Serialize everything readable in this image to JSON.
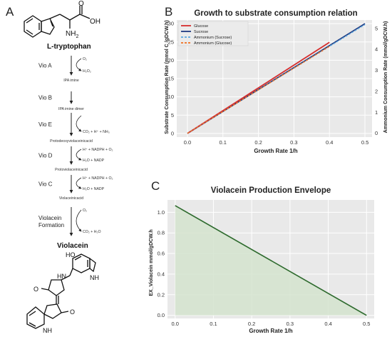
{
  "panels": {
    "a": "A",
    "b": "B",
    "c": "C"
  },
  "pathway": {
    "start": "L-tryptophan",
    "start_groups": {
      "oh": "OH",
      "o": "O",
      "nh2": "NH",
      "nh2_sub": "2"
    },
    "end": "Violacein",
    "end_groups": {
      "ho": "HO",
      "o_left": "O",
      "nh_top": "NH",
      "hn": "HN",
      "nh_bottom": "NH",
      "o_bottom": "O"
    },
    "steps": [
      {
        "enzyme": "Vio A",
        "inputs": "O₂",
        "outputs": "H₂O₂",
        "product": "IPA imine"
      },
      {
        "enzyme": "Vio B",
        "inputs": "",
        "outputs": "",
        "product": "IPA imine dimer"
      },
      {
        "enzyme": "Vio E",
        "inputs": "",
        "outputs": "CO₂ + H⁺ + NH₃",
        "product": "Protodeoxyviolaceinicacid"
      },
      {
        "enzyme": "Vio D",
        "inputs": "H⁺ + NADPH + O₂",
        "outputs": "H₂O + NADP",
        "product": "Protoviolaceinicacid"
      },
      {
        "enzyme": "Vio C",
        "inputs": "H⁺ + NADPH + O₂",
        "outputs": "H₂O + NADP",
        "product": "Violaceinicacid"
      },
      {
        "enzyme": "Violacein\nFormation",
        "inputs": "O₂",
        "outputs": "CO₂ + H₂O",
        "product": ""
      }
    ]
  },
  "chart_data": [
    {
      "type": "line",
      "title": "Growth to substrate consumption relation",
      "xlabel": "Growth Rate 1/h",
      "ylabel": "Substrate Consumption Rate (mmol C /gDCW.h)",
      "y2label": "Ammonium Consumption Rate (mmol/gDCW.h)",
      "xlim": [
        -0.03,
        0.52
      ],
      "ylim": [
        -1,
        31
      ],
      "y2lim": [
        -0.18,
        5.4
      ],
      "xticks": [
        "0.0",
        "0.1",
        "0.2",
        "0.3",
        "0.4",
        "0.5"
      ],
      "yticks": [
        "0",
        "5",
        "10",
        "15",
        "20",
        "25",
        "30"
      ],
      "y2ticks": [
        "0",
        "1",
        "2",
        "3",
        "4",
        "5"
      ],
      "grid": true,
      "legend_position": "top-left",
      "series": [
        {
          "name": "Glucose",
          "axis": "left",
          "color": "#d62d2d",
          "style": "solid",
          "x": [
            0.0,
            0.4
          ],
          "y": [
            0.0,
            24.9
          ]
        },
        {
          "name": "Sucrose",
          "axis": "left",
          "color": "#1f3b82",
          "style": "solid",
          "x": [
            0.0,
            0.5
          ],
          "y": [
            0.0,
            30.0
          ]
        },
        {
          "name": "Ammonium (Sucrose)",
          "axis": "right",
          "color": "#5aa8e0",
          "style": "dashed",
          "x": [
            0.0,
            0.5
          ],
          "y": [
            0.0,
            5.18
          ]
        },
        {
          "name": "Ammonium (Glucose)",
          "axis": "right",
          "color": "#f07020",
          "style": "dashed",
          "x": [
            0.0,
            0.4
          ],
          "y": [
            0.0,
            4.14
          ]
        }
      ]
    },
    {
      "type": "area",
      "title": "Violacein Production Envelope",
      "xlabel": "Growth Rate 1/h",
      "ylabel": "EX_Violacein mmol/gDCW.h",
      "xlim": [
        -0.02,
        0.52
      ],
      "ylim": [
        -0.03,
        1.12
      ],
      "xticks": [
        "0.0",
        "0.1",
        "0.2",
        "0.3",
        "0.4",
        "0.5"
      ],
      "yticks": [
        "0.0",
        "0.2",
        "0.4",
        "0.6",
        "0.8",
        "1.0"
      ],
      "grid": true,
      "series": [
        {
          "color": "#2d6a2d",
          "fill": "#d4e3ce",
          "x": [
            0.0,
            0.5
          ],
          "y": [
            1.065,
            0.0
          ]
        }
      ]
    }
  ]
}
